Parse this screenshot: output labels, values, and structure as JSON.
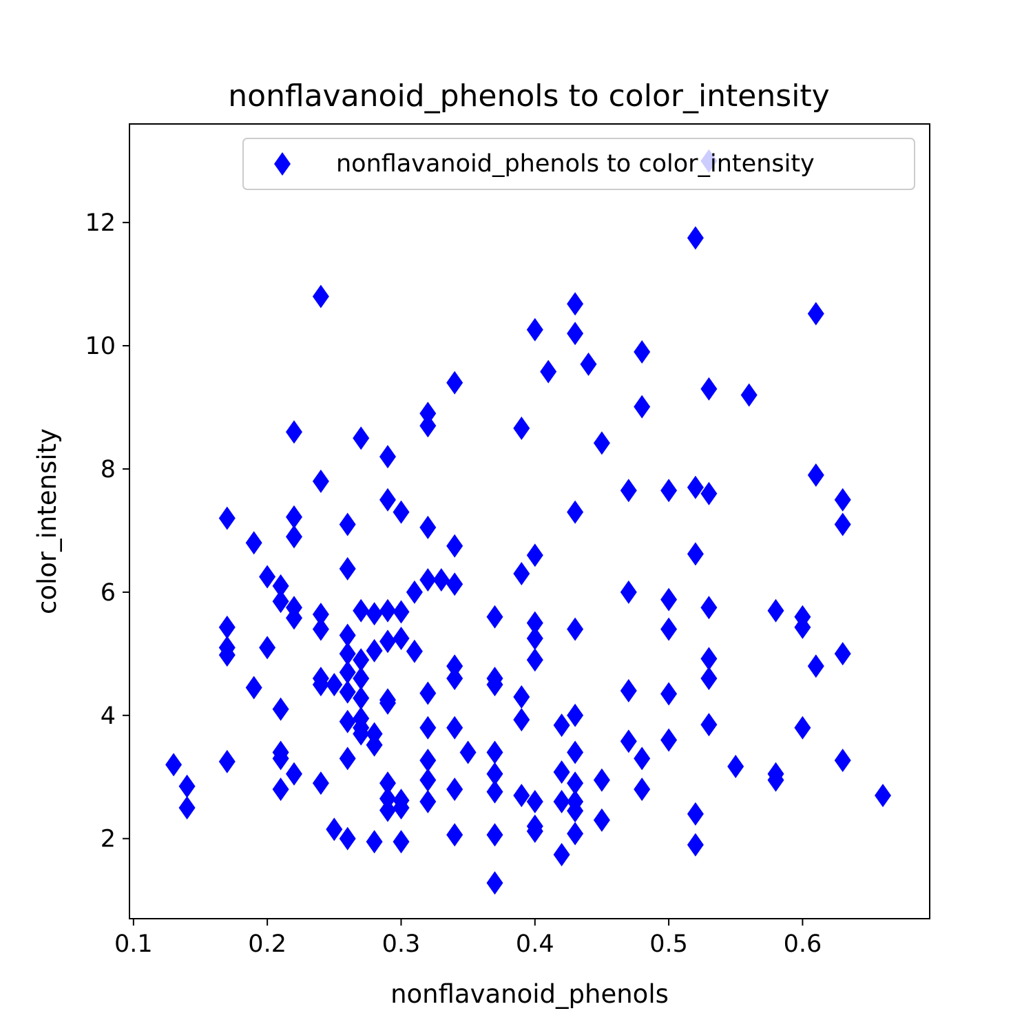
{
  "chart_data": {
    "type": "scatter",
    "title": "nonflavanoid_phenols to color_intensity",
    "xlabel": "nonflavanoid_phenols",
    "ylabel": "color_intensity",
    "xlim": [
      0.097,
      0.695
    ],
    "ylim": [
      0.7,
      13.6
    ],
    "xticks": [
      0.1,
      0.2,
      0.3,
      0.4,
      0.5,
      0.6
    ],
    "xtick_labels": [
      "0.1",
      "0.2",
      "0.3",
      "0.4",
      "0.5",
      "0.6"
    ],
    "yticks": [
      2,
      4,
      6,
      8,
      10,
      12
    ],
    "ytick_labels": [
      "2",
      "4",
      "6",
      "8",
      "10",
      "12"
    ],
    "grid": false,
    "marker": "thin-diamond",
    "color": "#0000ff",
    "legend": {
      "position": "upper-right",
      "entries": [
        "nonflavanoid_phenols to color_intensity"
      ]
    },
    "series": [
      {
        "name": "nonflavanoid_phenols to color_intensity",
        "points": [
          [
            0.13,
            3.2
          ],
          [
            0.14,
            2.85
          ],
          [
            0.14,
            2.5
          ],
          [
            0.17,
            7.2
          ],
          [
            0.17,
            5.43
          ],
          [
            0.17,
            5.1
          ],
          [
            0.17,
            4.98
          ],
          [
            0.17,
            3.25
          ],
          [
            0.19,
            6.8
          ],
          [
            0.19,
            4.45
          ],
          [
            0.2,
            6.25
          ],
          [
            0.2,
            5.1
          ],
          [
            0.21,
            6.1
          ],
          [
            0.21,
            5.85
          ],
          [
            0.21,
            4.1
          ],
          [
            0.21,
            3.4
          ],
          [
            0.21,
            3.3
          ],
          [
            0.21,
            2.8
          ],
          [
            0.22,
            8.6
          ],
          [
            0.22,
            7.22
          ],
          [
            0.22,
            6.9
          ],
          [
            0.22,
            5.75
          ],
          [
            0.22,
            5.58
          ],
          [
            0.22,
            3.05
          ],
          [
            0.24,
            10.8
          ],
          [
            0.24,
            7.8
          ],
          [
            0.24,
            5.64
          ],
          [
            0.24,
            5.4
          ],
          [
            0.24,
            4.6
          ],
          [
            0.24,
            4.5
          ],
          [
            0.24,
            2.9
          ],
          [
            0.25,
            4.5
          ],
          [
            0.25,
            2.15
          ],
          [
            0.26,
            7.1
          ],
          [
            0.26,
            6.38
          ],
          [
            0.26,
            5.3
          ],
          [
            0.26,
            5.0
          ],
          [
            0.26,
            4.7
          ],
          [
            0.26,
            4.38
          ],
          [
            0.26,
            3.9
          ],
          [
            0.26,
            3.3
          ],
          [
            0.26,
            2.0
          ],
          [
            0.27,
            8.5
          ],
          [
            0.27,
            5.7
          ],
          [
            0.27,
            4.9
          ],
          [
            0.27,
            4.6
          ],
          [
            0.27,
            4.28
          ],
          [
            0.27,
            3.95
          ],
          [
            0.27,
            3.8
          ],
          [
            0.27,
            3.7
          ],
          [
            0.28,
            5.65
          ],
          [
            0.28,
            5.05
          ],
          [
            0.28,
            3.7
          ],
          [
            0.28,
            3.52
          ],
          [
            0.28,
            1.95
          ],
          [
            0.29,
            8.2
          ],
          [
            0.29,
            7.5
          ],
          [
            0.29,
            5.7
          ],
          [
            0.29,
            5.2
          ],
          [
            0.29,
            4.25
          ],
          [
            0.29,
            4.2
          ],
          [
            0.29,
            2.9
          ],
          [
            0.29,
            2.65
          ],
          [
            0.29,
            2.46
          ],
          [
            0.3,
            7.3
          ],
          [
            0.3,
            5.68
          ],
          [
            0.3,
            5.25
          ],
          [
            0.3,
            2.62
          ],
          [
            0.3,
            2.5
          ],
          [
            0.3,
            1.95
          ],
          [
            0.31,
            6.0
          ],
          [
            0.31,
            5.04
          ],
          [
            0.32,
            8.9
          ],
          [
            0.32,
            8.7
          ],
          [
            0.32,
            7.05
          ],
          [
            0.32,
            6.2
          ],
          [
            0.32,
            4.36
          ],
          [
            0.32,
            3.8
          ],
          [
            0.32,
            3.27
          ],
          [
            0.32,
            2.95
          ],
          [
            0.32,
            2.6
          ],
          [
            0.33,
            6.2
          ],
          [
            0.34,
            9.4
          ],
          [
            0.34,
            6.75
          ],
          [
            0.34,
            6.13
          ],
          [
            0.34,
            4.8
          ],
          [
            0.34,
            4.6
          ],
          [
            0.34,
            3.8
          ],
          [
            0.34,
            2.8
          ],
          [
            0.34,
            2.06
          ],
          [
            0.35,
            3.4
          ],
          [
            0.37,
            5.6
          ],
          [
            0.37,
            4.6
          ],
          [
            0.37,
            4.5
          ],
          [
            0.37,
            3.4
          ],
          [
            0.37,
            3.05
          ],
          [
            0.37,
            2.76
          ],
          [
            0.37,
            2.06
          ],
          [
            0.37,
            1.28
          ],
          [
            0.39,
            8.66
          ],
          [
            0.39,
            6.3
          ],
          [
            0.39,
            4.3
          ],
          [
            0.39,
            3.93
          ],
          [
            0.39,
            2.7
          ],
          [
            0.4,
            10.26
          ],
          [
            0.4,
            6.6
          ],
          [
            0.4,
            5.5
          ],
          [
            0.4,
            5.25
          ],
          [
            0.4,
            4.9
          ],
          [
            0.4,
            2.6
          ],
          [
            0.4,
            2.2
          ],
          [
            0.4,
            2.12
          ],
          [
            0.41,
            9.58
          ],
          [
            0.42,
            3.84
          ],
          [
            0.42,
            3.08
          ],
          [
            0.42,
            2.6
          ],
          [
            0.42,
            1.74
          ],
          [
            0.43,
            10.68
          ],
          [
            0.43,
            10.2
          ],
          [
            0.43,
            7.3
          ],
          [
            0.43,
            5.4
          ],
          [
            0.43,
            4.0
          ],
          [
            0.43,
            3.4
          ],
          [
            0.43,
            2.9
          ],
          [
            0.43,
            2.6
          ],
          [
            0.43,
            2.45
          ],
          [
            0.43,
            2.08
          ],
          [
            0.44,
            9.7
          ],
          [
            0.45,
            8.42
          ],
          [
            0.45,
            2.95
          ],
          [
            0.45,
            2.3
          ],
          [
            0.47,
            7.65
          ],
          [
            0.47,
            6.0
          ],
          [
            0.47,
            4.4
          ],
          [
            0.47,
            3.58
          ],
          [
            0.48,
            9.9
          ],
          [
            0.48,
            9.01
          ],
          [
            0.48,
            3.3
          ],
          [
            0.48,
            2.8
          ],
          [
            0.5,
            7.65
          ],
          [
            0.5,
            5.88
          ],
          [
            0.5,
            5.4
          ],
          [
            0.5,
            4.35
          ],
          [
            0.5,
            3.6
          ],
          [
            0.52,
            11.75
          ],
          [
            0.52,
            7.7
          ],
          [
            0.52,
            6.62
          ],
          [
            0.52,
            2.4
          ],
          [
            0.52,
            1.9
          ],
          [
            0.53,
            13.0
          ],
          [
            0.53,
            9.3
          ],
          [
            0.53,
            7.6
          ],
          [
            0.53,
            5.75
          ],
          [
            0.53,
            4.92
          ],
          [
            0.53,
            4.6
          ],
          [
            0.53,
            3.85
          ],
          [
            0.55,
            3.17
          ],
          [
            0.56,
            9.2
          ],
          [
            0.58,
            5.7
          ],
          [
            0.58,
            3.05
          ],
          [
            0.58,
            2.95
          ],
          [
            0.6,
            5.6
          ],
          [
            0.6,
            5.43
          ],
          [
            0.6,
            3.8
          ],
          [
            0.61,
            10.52
          ],
          [
            0.61,
            7.9
          ],
          [
            0.61,
            4.8
          ],
          [
            0.63,
            7.5
          ],
          [
            0.63,
            7.1
          ],
          [
            0.63,
            5.0
          ],
          [
            0.63,
            3.27
          ],
          [
            0.66,
            2.7
          ]
        ]
      }
    ]
  }
}
